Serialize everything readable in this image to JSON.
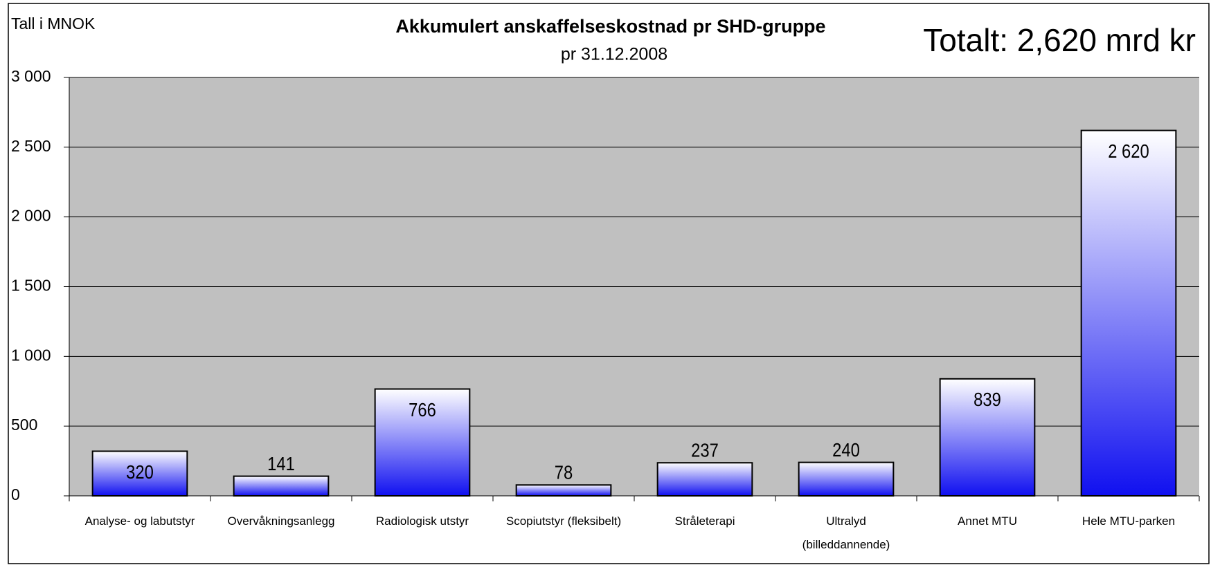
{
  "chart_data": {
    "type": "bar",
    "title": "Akkumulert anskaffelseskostnad pr SHD-gruppe",
    "subtitle": "pr 31.12.2008",
    "y_unit_label": "Tall i MNOK",
    "annotation": "Totalt: 2,620 mrd kr",
    "categories": [
      "Analyse- og labutstyr",
      "Overvåkningsanlegg",
      "Radiologisk utstyr",
      "Scopiutstyr (fleksibelt)",
      "Stråleterapi",
      "Ultralyd\n(billeddannende)",
      "Annet MTU",
      "Hele MTU-parken"
    ],
    "values": [
      320,
      141,
      766,
      78,
      237,
      240,
      839,
      2620
    ],
    "value_labels": [
      "320",
      "141",
      "766",
      "78",
      "237",
      "240",
      "839",
      "2 620"
    ],
    "color": "#1010f0",
    "ylim": [
      0,
      3000
    ],
    "yticks": [
      0,
      500,
      {
        "value": 1000,
        "label": "1 000"
      },
      {
        "value": 1500,
        "label": "1 500"
      },
      {
        "value": 2000,
        "label": "2 000"
      },
      {
        "value": 2500,
        "label": "2 500"
      },
      {
        "value": 3000,
        "label": "3 000"
      }
    ],
    "grid": true
  }
}
